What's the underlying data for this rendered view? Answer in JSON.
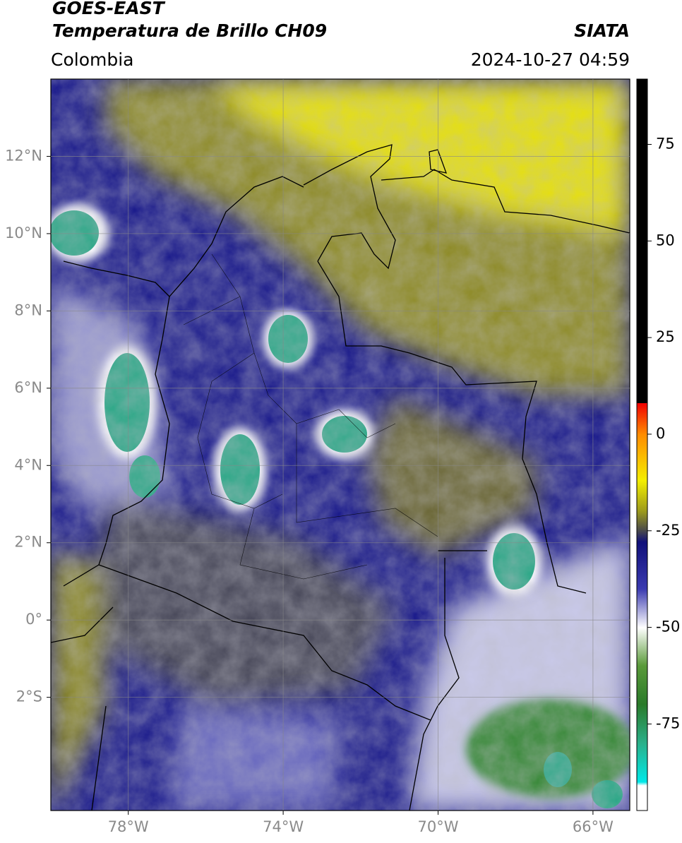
{
  "header": {
    "title": "GOES-EAST",
    "subtitle": "Temperatura de Brillo CH09",
    "source": "SIATA",
    "region": "Colombia",
    "timestamp": "2024-10-27 04:59"
  },
  "map": {
    "xlim": [
      -80,
      -65.05
    ],
    "ylim": [
      -4.93,
      14
    ],
    "grid": true,
    "xticks": [
      {
        "value": -78,
        "label": "78°W"
      },
      {
        "value": -74,
        "label": "74°W"
      },
      {
        "value": -70,
        "label": "70°W"
      },
      {
        "value": -66,
        "label": "66°W"
      }
    ],
    "yticks": [
      {
        "value": 12,
        "label": "12°N"
      },
      {
        "value": 10,
        "label": "10°N"
      },
      {
        "value": 8,
        "label": "8°N"
      },
      {
        "value": 6,
        "label": "6°N"
      },
      {
        "value": 4,
        "label": "4°N"
      },
      {
        "value": 2,
        "label": "2°N"
      },
      {
        "value": 0,
        "label": "0°"
      },
      {
        "value": -2,
        "label": "2°S"
      }
    ]
  },
  "colorbar": {
    "lim": [
      -97.4,
      91.9
    ],
    "ticks": [
      75,
      50,
      25,
      0,
      -25,
      -50,
      -75
    ]
  }
}
